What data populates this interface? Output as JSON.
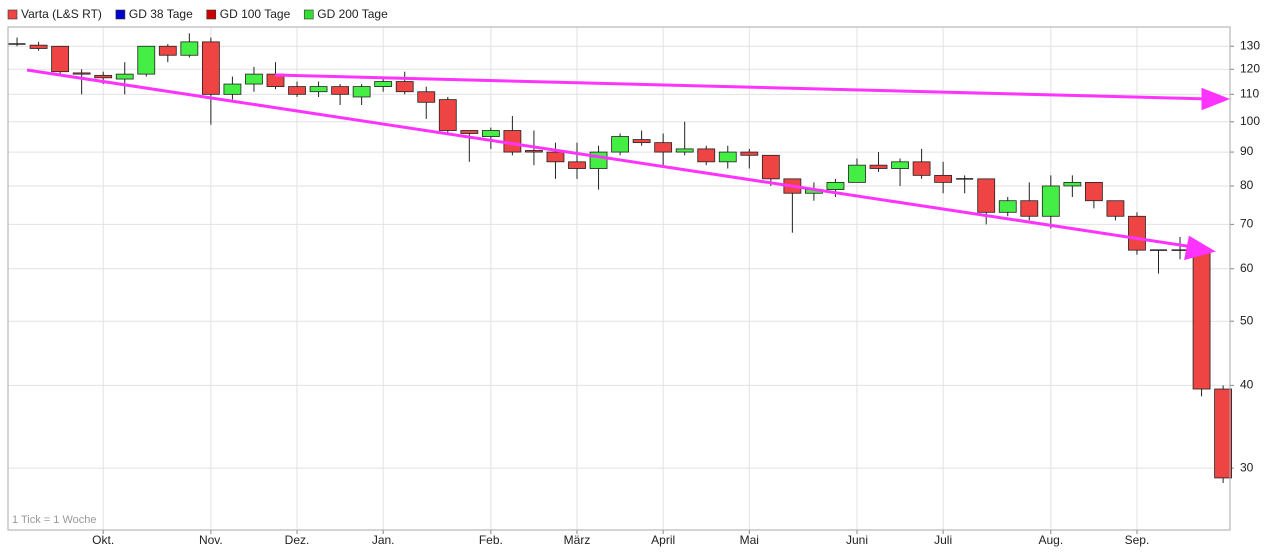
{
  "chart_data": {
    "type": "candlestick",
    "annotation": "1 Tick = 1 Woche",
    "log_scale": true,
    "grid": true,
    "up_color": "#44ee44",
    "down_color": "#ee4444",
    "series": [
      {
        "name": "Varta (L&S RT)",
        "color": "#ee4444",
        "open": [
          131,
          130.5,
          130,
          118.5,
          117.5,
          116,
          118,
          130,
          126,
          132,
          110,
          114,
          118,
          113,
          111,
          113,
          109,
          113,
          115,
          111,
          108,
          97,
          95,
          97,
          90.5,
          90,
          87,
          85,
          90,
          94,
          93,
          90,
          91,
          87,
          90,
          89,
          82,
          78,
          79,
          81,
          86,
          85,
          87,
          83,
          82,
          82,
          73,
          76,
          72,
          80,
          81,
          76,
          72,
          64,
          64,
          64,
          39.5
        ],
        "high": [
          134,
          132,
          130,
          120,
          119,
          123,
          130,
          131,
          136,
          134,
          117,
          121,
          123,
          115,
          115,
          114,
          114,
          117,
          119,
          113,
          109,
          97,
          98,
          102,
          97,
          93,
          93,
          92,
          96,
          97,
          96,
          100,
          92,
          92,
          91,
          89,
          82,
          81,
          82,
          88,
          90,
          88,
          91,
          87,
          83,
          82,
          77,
          81,
          83,
          83,
          81,
          76,
          73,
          64,
          67,
          64,
          40
        ],
        "low": [
          130,
          128,
          118,
          110,
          114,
          110,
          117,
          123,
          125,
          99,
          108,
          111,
          112,
          109,
          109,
          106,
          106,
          111,
          110,
          101,
          96,
          87,
          91,
          89,
          86,
          82,
          82,
          79,
          89,
          92,
          86,
          89,
          86,
          85,
          85,
          80,
          68,
          76,
          77,
          81,
          84,
          80,
          82,
          78,
          78,
          70,
          72,
          71,
          69,
          77,
          74,
          71,
          63,
          59,
          62,
          38.5,
          28.5
        ],
        "close": [
          131,
          129,
          119,
          118,
          116.5,
          118,
          130,
          126,
          132,
          110,
          114,
          118,
          113,
          110,
          113,
          110,
          113,
          115,
          111,
          107,
          97,
          96,
          97,
          90,
          90,
          87,
          85,
          90,
          95,
          93,
          90,
          91,
          87,
          90,
          89,
          82,
          78,
          79,
          81,
          86,
          85,
          87,
          83,
          81,
          82,
          73,
          76,
          72,
          80,
          81,
          76,
          72,
          64,
          64,
          64,
          39.5,
          29
        ]
      }
    ],
    "indicators": [
      {
        "name": "GD 38 Tage",
        "color": "#0000cc"
      },
      {
        "name": "GD 100 Tage",
        "color": "#cc0000"
      },
      {
        "name": "GD 200 Tage",
        "color": "#33dd33"
      }
    ],
    "ylim": [
      24.2,
      139
    ],
    "yticks": [
      30,
      40,
      50,
      60,
      70,
      80,
      90,
      100,
      110,
      120,
      130
    ],
    "xlim": [
      -0.42,
      56.32
    ],
    "xticks": [
      {
        "value": 4,
        "label": "Okt."
      },
      {
        "value": 9,
        "label": "Nov."
      },
      {
        "value": 13,
        "label": "Dez."
      },
      {
        "value": 17,
        "label": "Jan."
      },
      {
        "value": 22,
        "label": "Feb."
      },
      {
        "value": 26,
        "label": "März"
      },
      {
        "value": 30,
        "label": "April"
      },
      {
        "value": 34,
        "label": "Mai"
      },
      {
        "value": 39,
        "label": "Juni"
      },
      {
        "value": 43,
        "label": "Juli"
      },
      {
        "value": 48,
        "label": "Aug."
      },
      {
        "value": 52,
        "label": "Sep."
      }
    ]
  }
}
